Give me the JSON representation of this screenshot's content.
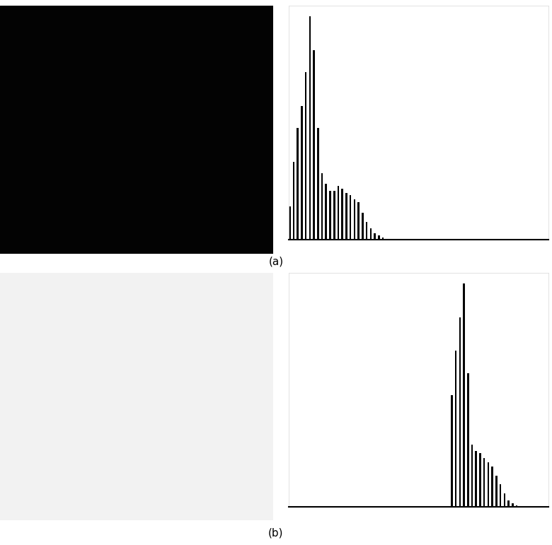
{
  "chart_data": [
    {
      "type": "histogram",
      "annotations": [
        "(a)"
      ],
      "color": "#000000",
      "bins": [
        0,
        4,
        8,
        12,
        16,
        20,
        24,
        28,
        32,
        36,
        40,
        44,
        48,
        52,
        56,
        60,
        64,
        68,
        72,
        76,
        80,
        84,
        88,
        92,
        96,
        100,
        104,
        108,
        112,
        116,
        120,
        124,
        128,
        132,
        136,
        140,
        144,
        148,
        152,
        156,
        160,
        164,
        168,
        172,
        176,
        180,
        184,
        188,
        192,
        196,
        200,
        204,
        208,
        212,
        216,
        220,
        224,
        228,
        232,
        236,
        240,
        244,
        248,
        252,
        256
      ],
      "counts": [
        0.15,
        0.35,
        0.5,
        0.6,
        0.75,
        1.0,
        0.85,
        0.5,
        0.3,
        0.25,
        0.22,
        0.22,
        0.24,
        0.23,
        0.21,
        0.2,
        0.18,
        0.17,
        0.12,
        0.08,
        0.05,
        0.03,
        0.02,
        0.01,
        0.005,
        0,
        0,
        0,
        0,
        0,
        0,
        0,
        0,
        0,
        0,
        0,
        0,
        0,
        0,
        0,
        0,
        0,
        0,
        0,
        0,
        0,
        0,
        0,
        0,
        0,
        0,
        0,
        0,
        0,
        0,
        0,
        0,
        0,
        0,
        0,
        0,
        0,
        0,
        0
      ],
      "xlim": [
        0,
        256
      ],
      "ylim": [
        0,
        1.05
      ],
      "tick_labels": false
    },
    {
      "type": "histogram",
      "annotations": [
        "(b)"
      ],
      "color": "#000000",
      "bins": [
        0,
        4,
        8,
        12,
        16,
        20,
        24,
        28,
        32,
        36,
        40,
        44,
        48,
        52,
        56,
        60,
        64,
        68,
        72,
        76,
        80,
        84,
        88,
        92,
        96,
        100,
        104,
        108,
        112,
        116,
        120,
        124,
        128,
        132,
        136,
        140,
        144,
        148,
        152,
        156,
        160,
        164,
        168,
        172,
        176,
        180,
        184,
        188,
        192,
        196,
        200,
        204,
        208,
        212,
        216,
        220,
        224,
        228,
        232,
        236,
        240,
        244,
        248,
        252,
        256
      ],
      "counts": [
        0,
        0,
        0,
        0,
        0,
        0,
        0,
        0,
        0,
        0,
        0,
        0,
        0,
        0,
        0,
        0,
        0,
        0,
        0,
        0,
        0,
        0,
        0,
        0,
        0,
        0,
        0,
        0,
        0,
        0,
        0,
        0,
        0,
        0,
        0,
        0,
        0,
        0,
        0,
        0,
        0.5,
        0.7,
        0.85,
        1.0,
        0.6,
        0.28,
        0.25,
        0.24,
        0.22,
        0.2,
        0.18,
        0.14,
        0.1,
        0.06,
        0.03,
        0.015,
        0.005,
        0,
        0,
        0,
        0,
        0,
        0,
        0
      ],
      "xlim": [
        0,
        256
      ],
      "ylim": [
        0,
        1.05
      ],
      "tick_labels": false
    }
  ]
}
